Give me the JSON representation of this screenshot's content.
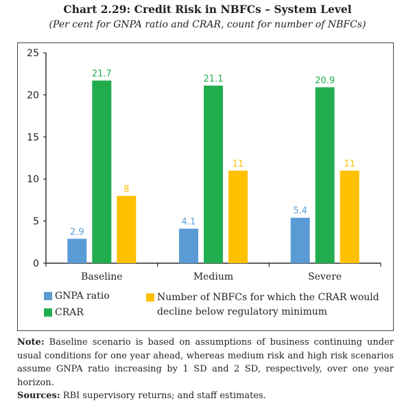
{
  "chart_data": {
    "type": "bar",
    "title": "Chart 2.29: Credit Risk in NBFCs – System Level",
    "subtitle": "(Per cent for GNPA ratio and CRAR, count for number of NBFCs)",
    "categories": [
      "Baseline",
      "Medium",
      "Severe"
    ],
    "series": [
      {
        "name": "GNPA ratio",
        "values": [
          2.9,
          4.1,
          5.4
        ],
        "color": "#5B9BD5"
      },
      {
        "name": "CRAR",
        "values": [
          21.7,
          21.1,
          20.9
        ],
        "color": "#21AD4E"
      },
      {
        "name": "Number of NBFCs for which the CRAR would decline below regulatory minimum",
        "values": [
          8,
          11,
          11
        ],
        "color": "#FFC000"
      }
    ],
    "yticks": [
      0,
      5,
      10,
      15,
      20,
      25
    ],
    "ylim": [
      0,
      25
    ],
    "grid": false,
    "legend_placement": "bottom"
  },
  "legend": {
    "gnpa": "GNPA ratio",
    "crar": "CRAR",
    "count_line1": "Number of NBFCs for which the CRAR would",
    "count_line2": "decline below regulatory minimum"
  },
  "note": {
    "label": "Note:",
    "text": " Baseline scenario is based on assumptions of business continuing under usual conditions for one year ahead, whereas medium risk and high risk scenarios assume GNPA ratio increasing by 1 SD and 2 SD, respectively, over one year horizon.",
    "sources_label": "Sources:",
    "sources_text": " RBI supervisory returns; and staff estimates."
  }
}
